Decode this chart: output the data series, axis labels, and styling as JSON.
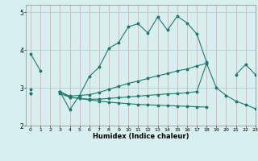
{
  "xlabel": "Humidex (Indice chaleur)",
  "xlim": [
    -0.5,
    23
  ],
  "ylim": [
    2,
    5.2
  ],
  "yticks": [
    2,
    3,
    4,
    5
  ],
  "xticks": [
    0,
    1,
    2,
    3,
    4,
    5,
    6,
    7,
    8,
    9,
    10,
    11,
    12,
    13,
    14,
    15,
    16,
    17,
    18,
    19,
    20,
    21,
    22,
    23
  ],
  "background_color": "#d8efef",
  "grid_color_v": "#e8aaaa",
  "grid_color_h": "#aad0d0",
  "line_color": "#1a7a6e",
  "line1": [
    3.9,
    3.45,
    null,
    2.9,
    2.42,
    2.8,
    3.3,
    3.55,
    4.05,
    4.2,
    4.62,
    4.7,
    4.45,
    4.88,
    4.53,
    4.9,
    4.72,
    4.43,
    3.68,
    null,
    null,
    3.35,
    3.62,
    3.35
  ],
  "line2": [
    2.85,
    null,
    null,
    2.85,
    2.75,
    2.72,
    2.7,
    2.7,
    2.72,
    2.74,
    2.76,
    2.78,
    2.8,
    2.82,
    2.84,
    2.85,
    2.87,
    2.9,
    3.65,
    3.0,
    2.8,
    2.65,
    2.55,
    2.45
  ],
  "line3": [
    2.95,
    null,
    null,
    2.9,
    2.78,
    2.8,
    2.82,
    2.88,
    2.96,
    3.04,
    3.12,
    3.18,
    3.25,
    3.32,
    3.38,
    3.45,
    3.5,
    3.58,
    3.65,
    null,
    null,
    null,
    null,
    null
  ],
  "line4": [
    2.85,
    null,
    null,
    2.9,
    2.75,
    2.72,
    2.68,
    2.65,
    2.62,
    2.6,
    2.58,
    2.56,
    2.55,
    2.54,
    2.53,
    2.52,
    2.51,
    2.5,
    2.49,
    null,
    null,
    null,
    null,
    null
  ]
}
